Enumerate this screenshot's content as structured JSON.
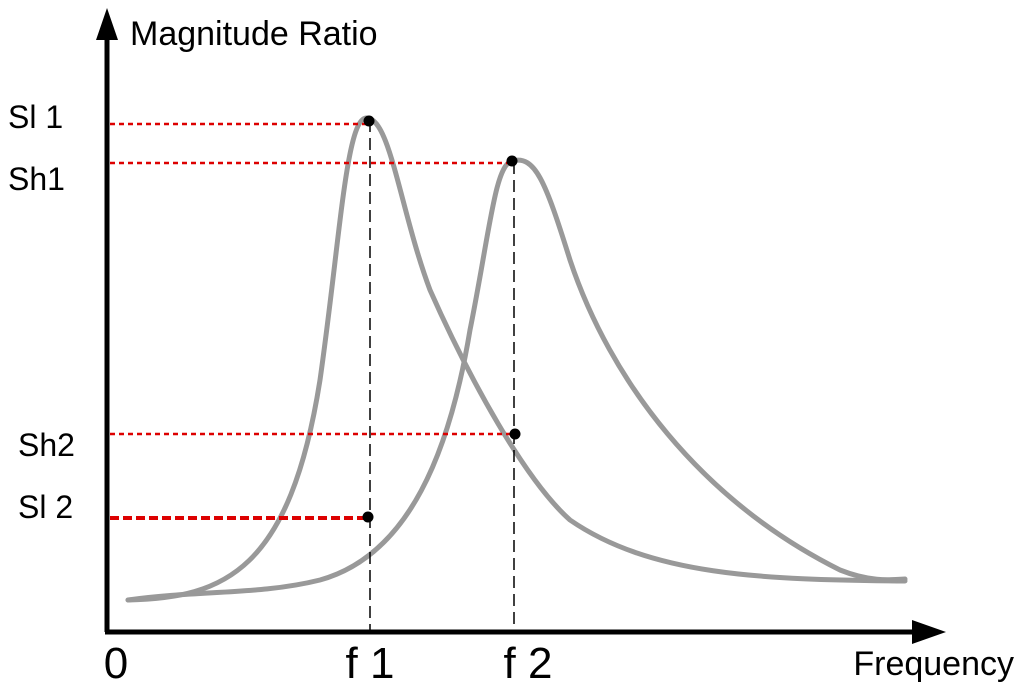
{
  "diagram": {
    "y_axis_label": "Magnitude Ratio",
    "x_axis_label": "Frequency",
    "origin_label": "0",
    "x_ticks": {
      "f1": "f 1",
      "f2": "f 2"
    },
    "y_ticks": {
      "sl1": "Sl 1",
      "sh1": "Sh1",
      "sh2": "Sh2",
      "sl2": "Sl 2"
    }
  },
  "colors": {
    "axis": "#000000",
    "curve": "#999999",
    "reference_line": "#dd0000",
    "marker": "#000000"
  }
}
